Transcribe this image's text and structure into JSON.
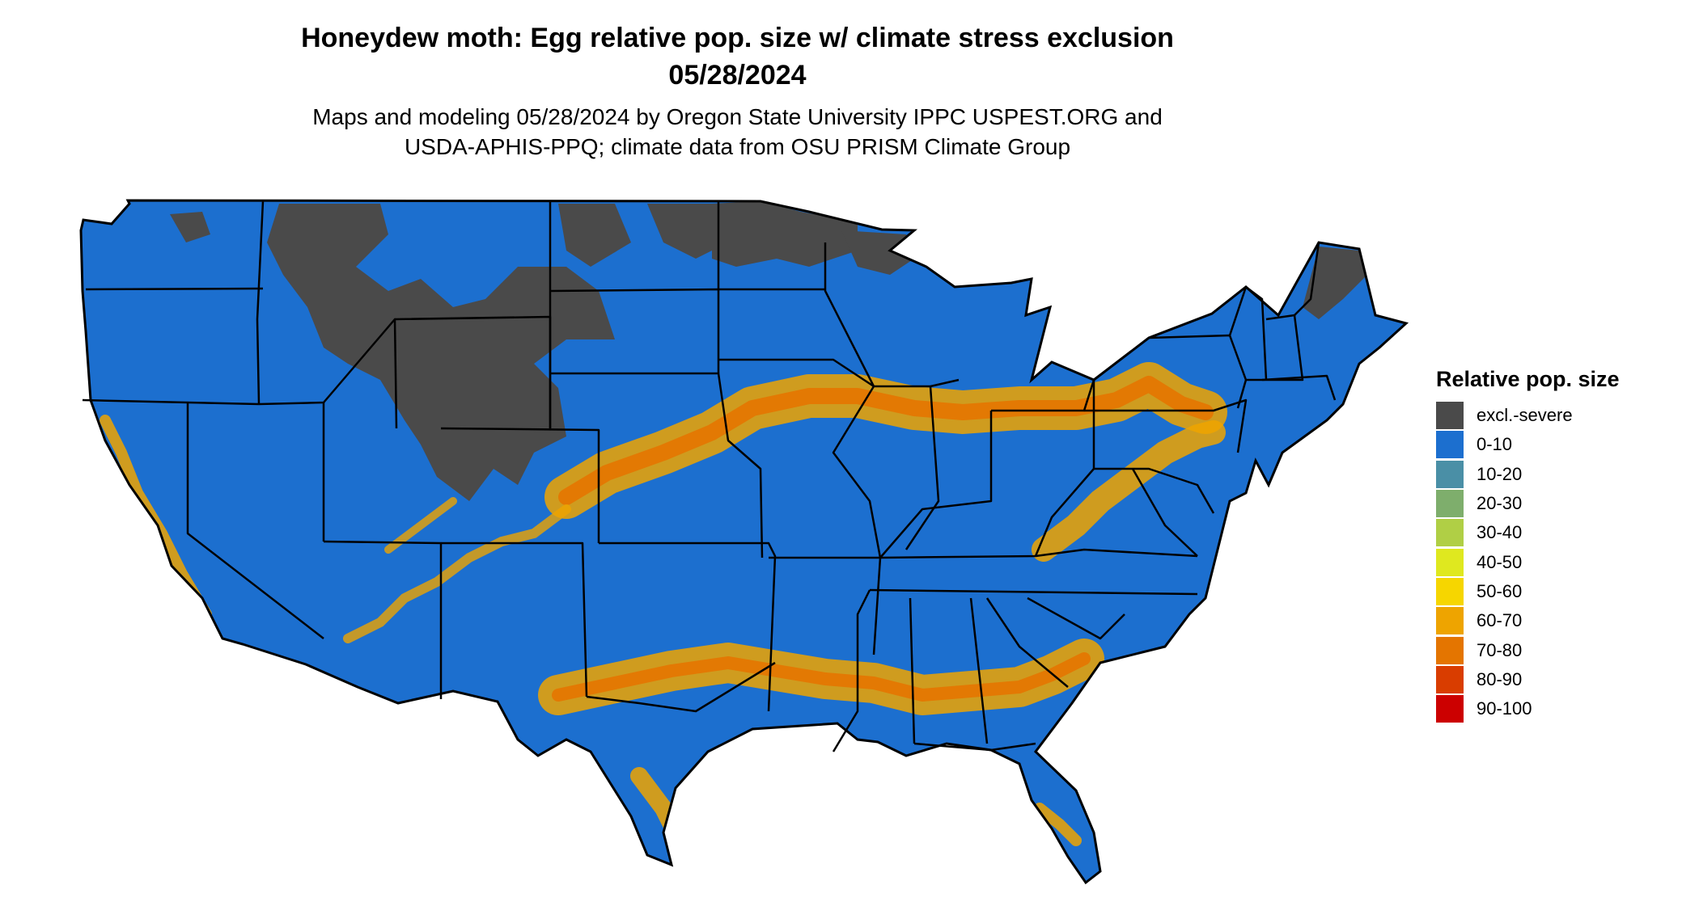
{
  "header": {
    "title_line1": "Honeydew moth: Egg relative pop. size w/ climate stress exclusion",
    "title_line2": "05/28/2024",
    "subtitle_line1": "Maps and modeling 05/28/2024 by Oregon State University IPPC USPEST.ORG and",
    "subtitle_line2": "USDA-APHIS-PPQ; climate data from OSU PRISM Climate Group"
  },
  "map": {
    "region": "Conterminous United States",
    "base_color": "#1c6fcf",
    "excluded_color": "#4a4a4a",
    "border_color": "#000000"
  },
  "legend": {
    "title": "Relative pop. size",
    "items": [
      {
        "label": "excl.-severe",
        "color": "#4a4a4a"
      },
      {
        "label": "0-10",
        "color": "#1c6fcf"
      },
      {
        "label": "10-20",
        "color": "#4a8fa6"
      },
      {
        "label": "20-30",
        "color": "#7eae6c"
      },
      {
        "label": "30-40",
        "color": "#b0cf45"
      },
      {
        "label": "40-50",
        "color": "#dfe81f"
      },
      {
        "label": "50-60",
        "color": "#f6d600"
      },
      {
        "label": "60-70",
        "color": "#eea400"
      },
      {
        "label": "70-80",
        "color": "#e47500"
      },
      {
        "label": "80-90",
        "color": "#d93d00"
      },
      {
        "label": "90-100",
        "color": "#cc0000"
      }
    ]
  }
}
